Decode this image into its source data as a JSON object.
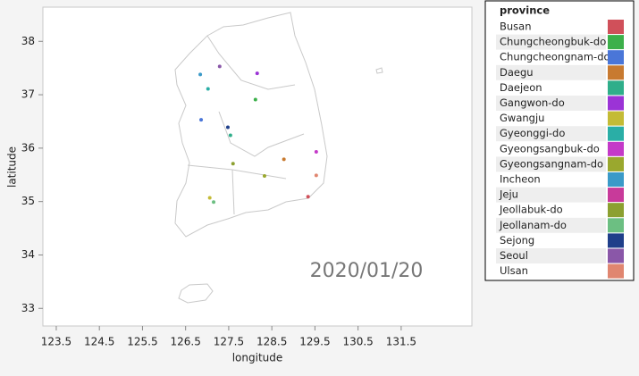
{
  "chart_data": {
    "type": "scatter",
    "xlabel": "longitude",
    "ylabel": "latitude",
    "annotation": "2020/01/20",
    "legend_title": "province",
    "xlim": [
      123.19,
      133.14
    ],
    "ylim": [
      32.67,
      38.64
    ],
    "xticks": [
      123.5,
      124.5,
      125.5,
      126.5,
      127.5,
      128.5,
      129.5,
      130.5,
      131.5
    ],
    "yticks": [
      33,
      34,
      35,
      36,
      37,
      38
    ],
    "series": [
      {
        "name": "Busan",
        "color": "#d0505a",
        "x": [
          129.34
        ],
        "y": [
          35.09
        ]
      },
      {
        "name": "Chungcheongbuk-do",
        "color": "#3cb04a",
        "x": [
          128.12
        ],
        "y": [
          36.91
        ]
      },
      {
        "name": "Chungcheongnam-do",
        "color": "#4a76d8",
        "x": [
          126.86
        ],
        "y": [
          36.53
        ]
      },
      {
        "name": "Daegu",
        "color": "#c87a30",
        "x": [
          128.78
        ],
        "y": [
          35.79
        ]
      },
      {
        "name": "Daejeon",
        "color": "#2fae8a",
        "x": [
          127.54
        ],
        "y": [
          36.24
        ]
      },
      {
        "name": "Gangwon-do",
        "color": "#9b33d6",
        "x": [
          128.16
        ],
        "y": [
          37.4
        ]
      },
      {
        "name": "Gwangju",
        "color": "#c4bb36",
        "x": [
          127.06
        ],
        "y": [
          35.07
        ]
      },
      {
        "name": "Gyeonggi-do",
        "color": "#2aaea6",
        "x": [
          127.02
        ],
        "y": [
          37.11
        ]
      },
      {
        "name": "Gyeongsangbuk-do",
        "color": "#c43ac8",
        "x": [
          129.53
        ],
        "y": [
          35.93
        ]
      },
      {
        "name": "Gyeongsangnam-do",
        "color": "#9aa82e",
        "x": [
          128.33
        ],
        "y": [
          35.48
        ]
      },
      {
        "name": "Incheon",
        "color": "#3b9ac8",
        "x": [
          126.84
        ],
        "y": [
          37.38
        ]
      },
      {
        "name": "Jeju",
        "color": "#c83a9a",
        "x": [],
        "y": []
      },
      {
        "name": "Jeollabuk-do",
        "color": "#8ca030",
        "x": [
          127.6
        ],
        "y": [
          35.71
        ]
      },
      {
        "name": "Jeollanam-do",
        "color": "#6cbf82",
        "x": [
          127.15
        ],
        "y": [
          34.99
        ]
      },
      {
        "name": "Sejong",
        "color": "#1f3f8a",
        "x": [
          127.48
        ],
        "y": [
          36.39
        ]
      },
      {
        "name": "Seoul",
        "color": "#8a57a8",
        "x": [
          127.29
        ],
        "y": [
          37.53
        ]
      },
      {
        "name": "Ulsan",
        "color": "#e08670",
        "x": [
          129.53
        ],
        "y": [
          35.49
        ]
      }
    ]
  }
}
